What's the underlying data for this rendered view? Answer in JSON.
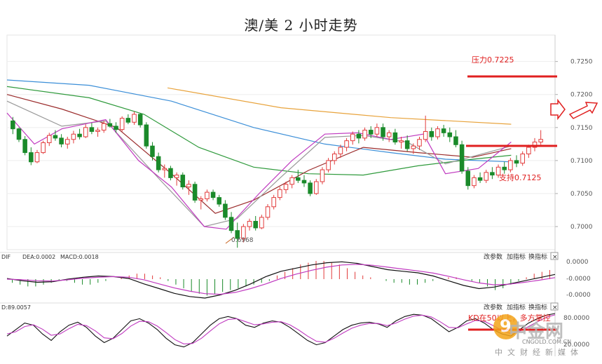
{
  "title": "澳/美 2 小时走势",
  "chart_data": [
    {
      "type": "candlestick",
      "title": "澳/美 2 小时走势",
      "ylim": [
        0.6965,
        0.729
      ],
      "y_ticks": [
        "0.7250",
        "0.7200",
        "0.7150",
        "0.7100",
        "0.7050",
        "0.7000"
      ],
      "y_tick_values": [
        0.725,
        0.72,
        0.715,
        0.71,
        0.705,
        0.7
      ],
      "candles": [
        [
          0.716,
          0.7166,
          0.714,
          0.7148
        ],
        [
          0.7148,
          0.715,
          0.7128,
          0.7132
        ],
        [
          0.7132,
          0.7137,
          0.7108,
          0.7112
        ],
        [
          0.7112,
          0.712,
          0.7093,
          0.7098
        ],
        [
          0.7098,
          0.7116,
          0.7096,
          0.7112
        ],
        [
          0.7112,
          0.713,
          0.711,
          0.7127
        ],
        [
          0.7127,
          0.7142,
          0.7122,
          0.7138
        ],
        [
          0.7138,
          0.7146,
          0.713,
          0.7134
        ],
        [
          0.7134,
          0.714,
          0.712,
          0.7125
        ],
        [
          0.7125,
          0.7136,
          0.7118,
          0.7132
        ],
        [
          0.7132,
          0.7145,
          0.7126,
          0.714
        ],
        [
          0.714,
          0.7148,
          0.7132,
          0.7136
        ],
        [
          0.7136,
          0.7155,
          0.7134,
          0.715
        ],
        [
          0.715,
          0.7157,
          0.714,
          0.7144
        ],
        [
          0.7144,
          0.715,
          0.7136,
          0.7146
        ],
        [
          0.7146,
          0.716,
          0.7142,
          0.7156
        ],
        [
          0.7156,
          0.7163,
          0.715,
          0.7152
        ],
        [
          0.7152,
          0.7158,
          0.7142,
          0.7147
        ],
        [
          0.7147,
          0.7167,
          0.7144,
          0.7164
        ],
        [
          0.7164,
          0.717,
          0.7155,
          0.7158
        ],
        [
          0.7158,
          0.7174,
          0.7154,
          0.717
        ],
        [
          0.717,
          0.7172,
          0.715,
          0.7154
        ],
        [
          0.7154,
          0.7158,
          0.7118,
          0.7122
        ],
        [
          0.7122,
          0.7128,
          0.71,
          0.7106
        ],
        [
          0.7106,
          0.7112,
          0.7082,
          0.7086
        ],
        [
          0.7086,
          0.7094,
          0.7074,
          0.7088
        ],
        [
          0.7088,
          0.7092,
          0.707,
          0.7074
        ],
        [
          0.7074,
          0.7082,
          0.7062,
          0.7078
        ],
        [
          0.7078,
          0.7082,
          0.7056,
          0.706
        ],
        [
          0.706,
          0.707,
          0.7048,
          0.7064
        ],
        [
          0.7064,
          0.7068,
          0.7036,
          0.704
        ],
        [
          0.704,
          0.7046,
          0.7026,
          0.7042
        ],
        [
          0.7042,
          0.7056,
          0.7038,
          0.7052
        ],
        [
          0.7052,
          0.7056,
          0.704,
          0.7044
        ],
        [
          0.7044,
          0.7048,
          0.703,
          0.7034
        ],
        [
          0.7034,
          0.704,
          0.701,
          0.7014
        ],
        [
          0.7014,
          0.7022,
          0.699,
          0.6994
        ],
        [
          0.6994,
          0.7006,
          0.6968,
          0.6982
        ],
        [
          0.6982,
          0.7004,
          0.6976,
          0.7
        ],
        [
          0.7,
          0.7012,
          0.6994,
          0.7008
        ],
        [
          0.7008,
          0.7016,
          0.6994,
          0.6998
        ],
        [
          0.6998,
          0.7018,
          0.6996,
          0.7014
        ],
        [
          0.7014,
          0.7034,
          0.701,
          0.703
        ],
        [
          0.703,
          0.7048,
          0.7026,
          0.7044
        ],
        [
          0.7044,
          0.706,
          0.704,
          0.7056
        ],
        [
          0.7056,
          0.7068,
          0.705,
          0.7064
        ],
        [
          0.7064,
          0.7078,
          0.7058,
          0.7074
        ],
        [
          0.7074,
          0.7086,
          0.7066,
          0.707
        ],
        [
          0.707,
          0.7078,
          0.706,
          0.7066
        ],
        [
          0.7066,
          0.707,
          0.7046,
          0.705
        ],
        [
          0.705,
          0.7072,
          0.7048,
          0.7068
        ],
        [
          0.7068,
          0.709,
          0.7064,
          0.7086
        ],
        [
          0.7086,
          0.7104,
          0.7082,
          0.71
        ],
        [
          0.71,
          0.7114,
          0.7094,
          0.711
        ],
        [
          0.711,
          0.7124,
          0.7104,
          0.712
        ],
        [
          0.712,
          0.7134,
          0.7114,
          0.713
        ],
        [
          0.713,
          0.7144,
          0.7124,
          0.714
        ],
        [
          0.714,
          0.7146,
          0.7126,
          0.7134
        ],
        [
          0.7134,
          0.715,
          0.713,
          0.7146
        ],
        [
          0.7146,
          0.7152,
          0.7134,
          0.714
        ],
        [
          0.714,
          0.7156,
          0.7136,
          0.715
        ],
        [
          0.715,
          0.7156,
          0.713,
          0.7136
        ],
        [
          0.7136,
          0.7146,
          0.7128,
          0.7142
        ],
        [
          0.7142,
          0.7148,
          0.7124,
          0.7128
        ],
        [
          0.7128,
          0.7136,
          0.7118,
          0.713
        ],
        [
          0.713,
          0.7138,
          0.7114,
          0.7118
        ],
        [
          0.7118,
          0.7126,
          0.711,
          0.7122
        ],
        [
          0.7122,
          0.7136,
          0.7116,
          0.7132
        ],
        [
          0.7132,
          0.7168,
          0.7128,
          0.7144
        ],
        [
          0.7144,
          0.715,
          0.713,
          0.7136
        ],
        [
          0.7136,
          0.7152,
          0.7132,
          0.7148
        ],
        [
          0.7148,
          0.7154,
          0.7136,
          0.7142
        ],
        [
          0.7142,
          0.715,
          0.7128,
          0.7136
        ],
        [
          0.7136,
          0.7146,
          0.712,
          0.7124
        ],
        [
          0.7124,
          0.713,
          0.708,
          0.7084
        ],
        [
          0.7084,
          0.709,
          0.7056,
          0.7062
        ],
        [
          0.7062,
          0.7078,
          0.7058,
          0.7074
        ],
        [
          0.7074,
          0.7082,
          0.7066,
          0.707
        ],
        [
          0.707,
          0.7086,
          0.7066,
          0.7082
        ],
        [
          0.7082,
          0.709,
          0.7072,
          0.7078
        ],
        [
          0.7078,
          0.7094,
          0.7074,
          0.709
        ],
        [
          0.709,
          0.7098,
          0.708,
          0.7086
        ],
        [
          0.7086,
          0.7104,
          0.7082,
          0.71
        ],
        [
          0.71,
          0.7108,
          0.709,
          0.7096
        ],
        [
          0.7096,
          0.7114,
          0.7092,
          0.711
        ],
        [
          0.711,
          0.7124,
          0.7104,
          0.712
        ],
        [
          0.712,
          0.7134,
          0.7114,
          0.7128
        ],
        [
          0.7128,
          0.7146,
          0.7124,
          0.7132
        ]
      ],
      "moving_averages": [
        {
          "color": "#e8a33c",
          "values": [
            [
              0.293,
              0.721
            ],
            [
              0.5,
              0.718
            ],
            [
              0.7,
              0.7165
            ],
            [
              0.92,
              0.7155
            ]
          ]
        },
        {
          "color": "#3c8fd8",
          "values": [
            [
              0.0,
              0.7222
            ],
            [
              0.15,
              0.7214
            ],
            [
              0.3,
              0.719
            ],
            [
              0.45,
              0.715
            ],
            [
              0.58,
              0.7125
            ],
            [
              0.7,
              0.7112
            ],
            [
              0.8,
              0.7102
            ],
            [
              0.92,
              0.7098
            ]
          ]
        },
        {
          "color": "#2f9a3c",
          "values": [
            [
              0.0,
              0.7212
            ],
            [
              0.15,
              0.7195
            ],
            [
              0.25,
              0.717
            ],
            [
              0.35,
              0.712
            ],
            [
              0.45,
              0.709
            ],
            [
              0.55,
              0.708
            ],
            [
              0.65,
              0.7078
            ],
            [
              0.75,
              0.7092
            ],
            [
              0.85,
              0.7102
            ],
            [
              0.92,
              0.7108
            ]
          ]
        },
        {
          "color": "#9b2c2c",
          "values": [
            [
              0.0,
              0.72
            ],
            [
              0.1,
              0.7178
            ],
            [
              0.2,
              0.715
            ],
            [
              0.3,
              0.708
            ],
            [
              0.38,
              0.702
            ],
            [
              0.45,
              0.704
            ],
            [
              0.55,
              0.7085
            ],
            [
              0.65,
              0.712
            ],
            [
              0.75,
              0.7112
            ],
            [
              0.85,
              0.7105
            ],
            [
              0.92,
              0.7118
            ]
          ]
        },
        {
          "color": "#999999",
          "values": [
            [
              0.0,
              0.719
            ],
            [
              0.1,
              0.7152
            ],
            [
              0.18,
              0.716
            ],
            [
              0.28,
              0.707
            ],
            [
              0.36,
              0.7
            ],
            [
              0.42,
              0.7012
            ],
            [
              0.5,
              0.7075
            ],
            [
              0.58,
              0.7135
            ],
            [
              0.65,
              0.7138
            ],
            [
              0.73,
              0.7128
            ],
            [
              0.8,
              0.7095
            ],
            [
              0.92,
              0.7122
            ]
          ]
        },
        {
          "color": "#c03ac0",
          "values": [
            [
              0.0,
              0.7172
            ],
            [
              0.05,
              0.7125
            ],
            [
              0.1,
              0.7148
            ],
            [
              0.18,
              0.7162
            ],
            [
              0.24,
              0.71
            ],
            [
              0.3,
              0.706
            ],
            [
              0.36,
              0.7
            ],
            [
              0.4,
              0.6996
            ],
            [
              0.46,
              0.705
            ],
            [
              0.52,
              0.71
            ],
            [
              0.58,
              0.714
            ],
            [
              0.64,
              0.7142
            ],
            [
              0.7,
              0.7132
            ],
            [
              0.76,
              0.714
            ],
            [
              0.8,
              0.708
            ],
            [
              0.86,
              0.7088
            ],
            [
              0.92,
              0.7128
            ]
          ]
        }
      ],
      "annotations": [
        {
          "text": "压力0.7225",
          "value": 0.7225,
          "color": "#e02020"
        },
        {
          "text": "支持0.7125",
          "value": 0.7125,
          "color": "#e02020"
        },
        {
          "text": "0.6968",
          "value": 0.6968,
          "color": "#c8621c"
        }
      ]
    },
    {
      "type": "macd",
      "legend": [
        "DIF",
        "DEA:0.0002",
        "MACD:0.0018"
      ],
      "y_ticks": [
        "0.0000",
        "-0.0000",
        "-0.0000"
      ],
      "histogram": [
        -2,
        -3,
        -4,
        -4,
        -3,
        -2,
        -1,
        -1,
        -2,
        -3,
        -3,
        -2,
        -1,
        0,
        1,
        2,
        3,
        3,
        2,
        1,
        -1,
        -3,
        -5,
        -7,
        -8,
        -9,
        -8,
        -7,
        -6,
        -5,
        -4,
        -3,
        -2,
        -1,
        2,
        4,
        6,
        8,
        9,
        10,
        10,
        9,
        8,
        6,
        4,
        2,
        1,
        0,
        -1,
        -2,
        -2,
        -3,
        -3,
        -2,
        -1,
        0,
        1,
        1,
        0,
        -1,
        -2,
        -4,
        -6,
        -5,
        -3,
        -1,
        1,
        3,
        4,
        5
      ],
      "dif": [
        0.2,
        -0.5,
        -1.0,
        -0.8,
        0.0,
        0.6,
        1.0,
        0.8,
        0.2,
        -1.5,
        -3.0,
        -4.5,
        -5.5,
        -6.0,
        -5.0,
        -3.5,
        -1.5,
        0.8,
        2.5,
        3.5,
        4.5,
        5.2,
        5.5,
        5.0,
        4.0,
        3.0,
        2.5,
        2.0,
        1.0,
        -0.5,
        -2.0,
        -3.0,
        -2.5,
        -1.5,
        -0.5,
        0.5,
        1.5
      ],
      "dea": [
        0.0,
        -0.2,
        -0.5,
        -0.6,
        -0.2,
        0.3,
        0.6,
        0.8,
        0.6,
        -0.2,
        -1.5,
        -2.8,
        -3.8,
        -4.6,
        -4.8,
        -4.2,
        -3.0,
        -1.5,
        0.2,
        1.6,
        2.8,
        3.8,
        4.5,
        4.7,
        4.4,
        3.8,
        3.2,
        2.6,
        1.9,
        0.9,
        -0.2,
        -1.2,
        -1.8,
        -1.6,
        -1.0,
        -0.3,
        0.5
      ]
    },
    {
      "type": "kdj",
      "legend": [
        "D:89.0057"
      ],
      "y_ticks": [
        "80.0000",
        "20.0000"
      ],
      "k": [
        40,
        55,
        70,
        65,
        45,
        30,
        50,
        65,
        72,
        60,
        40,
        25,
        35,
        55,
        75,
        80,
        70,
        55,
        35,
        20,
        15,
        25,
        45,
        65,
        80,
        85,
        80,
        65,
        60,
        70,
        75,
        72,
        60,
        45,
        30,
        20,
        25,
        40,
        55,
        65,
        70,
        72,
        68,
        60,
        75,
        85,
        90,
        88,
        80,
        65,
        50,
        60,
        75,
        80,
        70,
        55,
        45,
        40,
        55,
        70,
        80,
        88,
        92
      ],
      "d": [
        45,
        50,
        62,
        66,
        56,
        42,
        45,
        57,
        67,
        64,
        52,
        36,
        34,
        46,
        63,
        74,
        73,
        63,
        48,
        32,
        22,
        23,
        35,
        52,
        68,
        78,
        80,
        73,
        66,
        68,
        72,
        73,
        66,
        54,
        40,
        28,
        26,
        35,
        47,
        58,
        65,
        69,
        69,
        64,
        70,
        79,
        86,
        88,
        84,
        73,
        60,
        59,
        68,
        76,
        74,
        64,
        53,
        46,
        51,
        62,
        73,
        83,
        89
      ]
    }
  ],
  "toolbar_labels": {
    "params": "改参数",
    "add": "加指标",
    "swap": "换指标",
    "close": "×"
  },
  "kd_annotation": "KD在50以上，多方掌控",
  "logo": {
    "name": "中金网",
    "url": "CNGOLD.COM.CN",
    "tag": "中文财经新媒体",
    "mark": "9"
  }
}
